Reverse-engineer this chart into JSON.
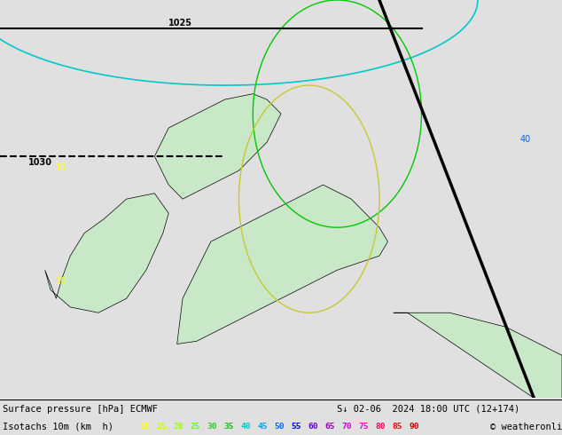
{
  "title_line1": "Surface pressure [hPa] ECMWF",
  "title_line1_right": "S↓ 02-06  2024 18:00 UTC (12+174)",
  "title_line2": "Isotachs 10m (km  h)",
  "copyright": "© weatheronline.co.uk",
  "legend_values": [
    10,
    15,
    20,
    25,
    30,
    35,
    40,
    45,
    50,
    55,
    60,
    65,
    70,
    75,
    80,
    85,
    90
  ],
  "legend_colors": [
    "#ffff00",
    "#c8ff00",
    "#96ff00",
    "#64ff00",
    "#32c832",
    "#00c800",
    "#00c8c8",
    "#00a0ff",
    "#0064ff",
    "#0000ff",
    "#6400c8",
    "#9600c8",
    "#c800c8",
    "#ff00c8",
    "#ff0064",
    "#ff0000",
    "#c80000"
  ],
  "bg_color": "#e0e0e0",
  "map_bg": "#e0e0e0",
  "land_color": "#c8e8c8",
  "sea_color": "#e0e0e0",
  "figsize": [
    6.34,
    4.9
  ],
  "dpi": 100,
  "bottom_bar_color": "#ffffff",
  "text_color": "#000000",
  "label1_fontsize": 7.5,
  "label2_fontsize": 7.5,
  "legend_fontsize": 7.0,
  "map_extent": [
    -12,
    8,
    48,
    62
  ],
  "isobar_color": "#000000",
  "cyan_color": "#00c8c8",
  "green_color": "#00c800",
  "yellow_color": "#c8c800",
  "orange_color": "#ffa500",
  "blue_color": "#0064ff"
}
